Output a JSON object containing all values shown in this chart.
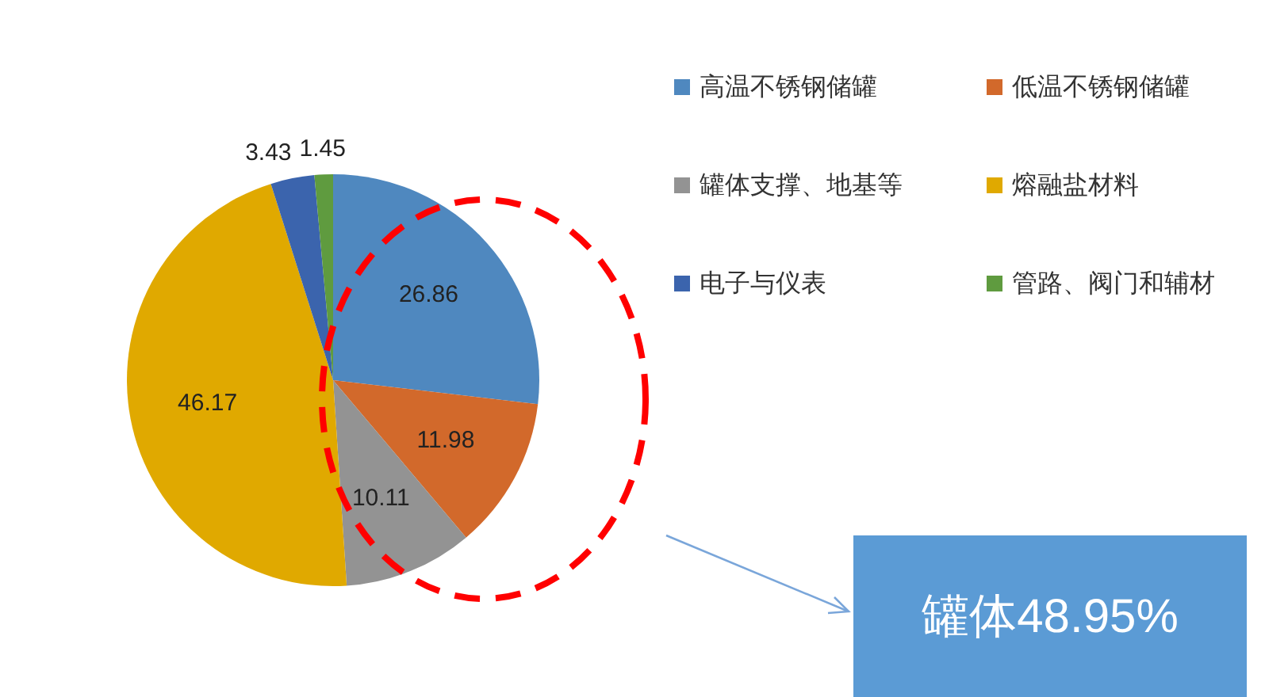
{
  "chart_data": {
    "type": "pie",
    "categories": [
      "高温不锈钢储罐",
      "低温不锈钢储罐",
      "罐体支撑、地基等",
      "熔融盐材料",
      "电子与仪表",
      "管路、阀门和辅材"
    ],
    "values": [
      26.86,
      11.98,
      10.11,
      46.17,
      3.43,
      1.45
    ],
    "colors": [
      "#4f88bf",
      "#d2692b",
      "#939393",
      "#e0a900",
      "#3b64ad",
      "#5f9b3f"
    ],
    "data_labels": true,
    "legend": "right",
    "annotations": [
      "罐体48.95%"
    ]
  }
}
